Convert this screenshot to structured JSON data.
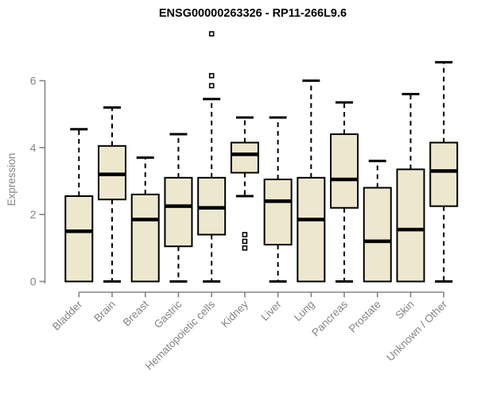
{
  "figure": {
    "title": "ENSG00000263326 - RP11-266L9.6",
    "ylabel": "Expression"
  },
  "colors": {
    "box_fill": "#ede8cd",
    "box_stroke": "#000000",
    "axis": "#848484",
    "tick_label": "#848484",
    "title": "#000000",
    "outlier_fill": "#ffffff",
    "background": "#ffffff"
  },
  "chart_data": {
    "type": "boxplot",
    "title": "ENSG00000263326 - RP11-266L9.6",
    "xlabel": "",
    "ylabel": "Expression",
    "ylim": [
      0,
      6
    ],
    "yticks": [
      0,
      2,
      4,
      6
    ],
    "grid": false,
    "legend": "none",
    "orientation": "vertical",
    "categories": [
      "Bladder",
      "Brain",
      "Breast",
      "Gastric",
      "Hematopoietic cells",
      "Kidney",
      "Liver",
      "Lung",
      "Pancreas",
      "Prostate",
      "Skin",
      "Unknown / Other"
    ],
    "series": [
      {
        "category": "Bladder",
        "whisker_low": 0,
        "q1": 0,
        "median": 1.5,
        "q3": 2.55,
        "whisker_high": 4.55,
        "outliers": []
      },
      {
        "category": "Brain",
        "whisker_low": 0,
        "q1": 2.45,
        "median": 3.2,
        "q3": 4.05,
        "whisker_high": 5.2,
        "outliers": []
      },
      {
        "category": "Breast",
        "whisker_low": 0,
        "q1": 0,
        "median": 1.85,
        "q3": 2.6,
        "whisker_high": 3.7,
        "outliers": []
      },
      {
        "category": "Gastric",
        "whisker_low": 0,
        "q1": 1.05,
        "median": 2.25,
        "q3": 3.1,
        "whisker_high": 4.4,
        "outliers": []
      },
      {
        "category": "Hematopoietic cells",
        "whisker_low": 0,
        "q1": 1.4,
        "median": 2.2,
        "q3": 3.1,
        "whisker_high": 5.45,
        "outliers": [
          5.85,
          6.15,
          7.4
        ]
      },
      {
        "category": "Kidney",
        "whisker_low": 2.55,
        "q1": 3.25,
        "median": 3.8,
        "q3": 4.15,
        "whisker_high": 4.9,
        "outliers": [
          1.4,
          1.2,
          1.0
        ]
      },
      {
        "category": "Liver",
        "whisker_low": 0,
        "q1": 1.1,
        "median": 2.4,
        "q3": 3.05,
        "whisker_high": 4.9,
        "outliers": []
      },
      {
        "category": "Lung",
        "whisker_low": 0,
        "q1": 0,
        "median": 1.85,
        "q3": 3.1,
        "whisker_high": 6.0,
        "outliers": []
      },
      {
        "category": "Pancreas",
        "whisker_low": 0,
        "q1": 2.2,
        "median": 3.05,
        "q3": 4.4,
        "whisker_high": 5.35,
        "outliers": []
      },
      {
        "category": "Prostate",
        "whisker_low": 0,
        "q1": 0,
        "median": 1.2,
        "q3": 2.8,
        "whisker_high": 3.6,
        "outliers": []
      },
      {
        "category": "Skin",
        "whisker_low": 0,
        "q1": 0,
        "median": 1.55,
        "q3": 3.35,
        "whisker_high": 5.6,
        "outliers": []
      },
      {
        "category": "Unknown / Other",
        "whisker_low": 0,
        "q1": 2.25,
        "median": 3.3,
        "q3": 4.15,
        "whisker_high": 6.55,
        "outliers": []
      }
    ]
  }
}
